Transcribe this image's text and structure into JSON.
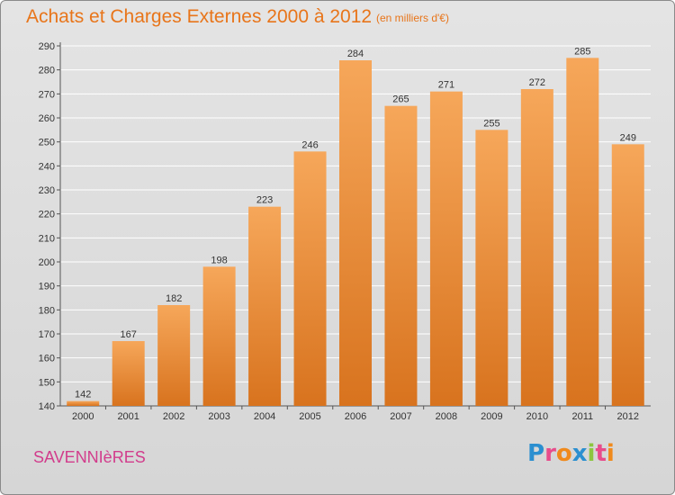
{
  "header": {
    "title": "Achats et Charges Externes 2000 à 2012",
    "subtitle": "(en milliers d'€)"
  },
  "footer": {
    "commune": "SAVENNIèRES",
    "logo_letters": [
      "P",
      "r",
      "o",
      "x",
      "i",
      "t",
      "i"
    ],
    "logo_colors": [
      "#2b8fd0",
      "#e84c8b",
      "#f08a1c",
      "#2b8fd0",
      "#8cc63f",
      "#e84c8b",
      "#f08a1c"
    ]
  },
  "colors": {
    "title": "#e8751a",
    "commune": "#d23c8c",
    "bar_light": "#f6a75a",
    "bar_dark": "#d8731e"
  },
  "chart_data": {
    "type": "bar",
    "categories": [
      "2000",
      "2001",
      "2002",
      "2003",
      "2004",
      "2005",
      "2006",
      "2007",
      "2008",
      "2009",
      "2010",
      "2011",
      "2012"
    ],
    "values": [
      142,
      167,
      182,
      198,
      223,
      246,
      284,
      265,
      271,
      255,
      272,
      285,
      249
    ],
    "title": "Achats et Charges Externes 2000 à 2012",
    "ylim": [
      140,
      290
    ],
    "yticks": [
      140,
      150,
      160,
      170,
      180,
      190,
      200,
      210,
      220,
      230,
      240,
      250,
      260,
      270,
      280,
      290
    ],
    "grid": true
  }
}
